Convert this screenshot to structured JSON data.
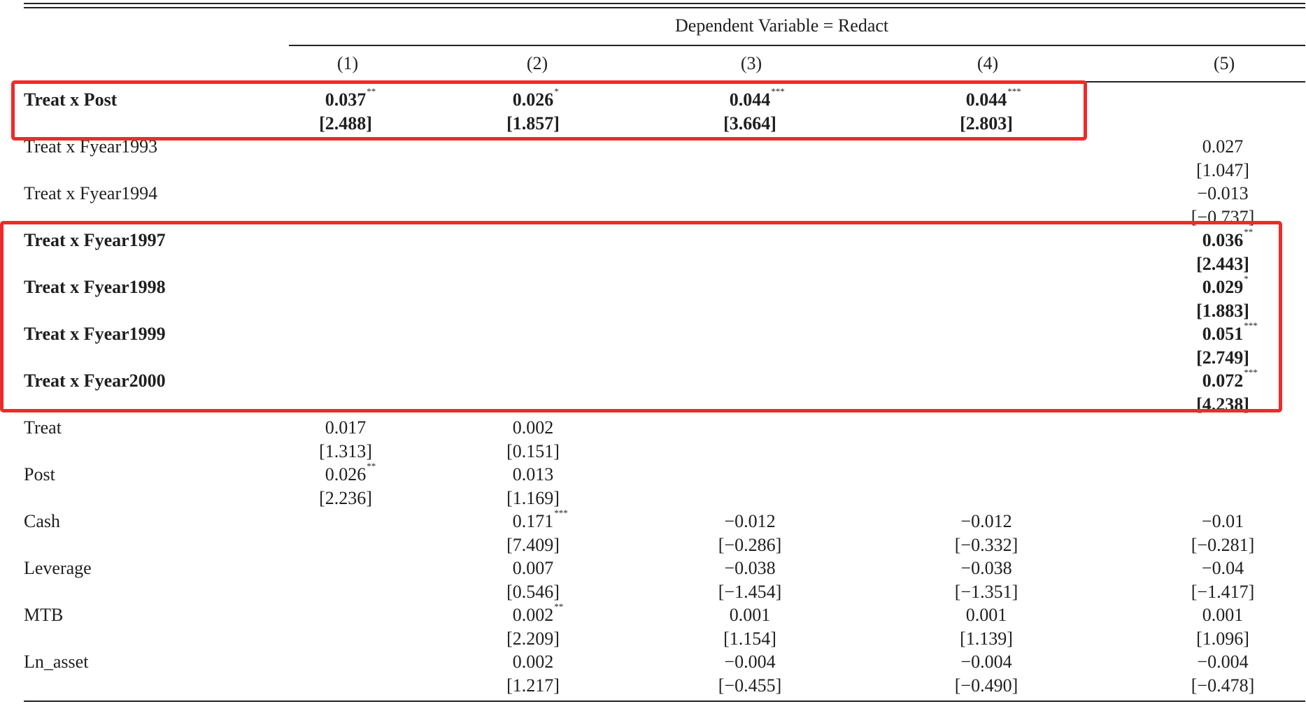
{
  "header": {
    "dependent_variable": "Dependent Variable = Redact",
    "columns": [
      "(1)",
      "(2)",
      "(3)",
      "(4)",
      "(5)"
    ]
  },
  "rows": [
    {
      "label": "Treat x Post",
      "bold": true,
      "cells": [
        {
          "col": 0,
          "coef": "0.037",
          "stars": "**",
          "t": "[2.488]"
        },
        {
          "col": 1,
          "coef": "0.026",
          "stars": "*",
          "t": "[1.857]"
        },
        {
          "col": 2,
          "coef": "0.044",
          "stars": "***",
          "t": "[3.664]"
        },
        {
          "col": 3,
          "coef": "0.044",
          "stars": "***",
          "t": "[2.803]"
        }
      ]
    },
    {
      "label": "Treat x Fyear1993",
      "bold": false,
      "cells": [
        {
          "col": 4,
          "coef": "0.027",
          "stars": "",
          "t": "[1.047]"
        }
      ]
    },
    {
      "label": "Treat x Fyear1994",
      "bold": false,
      "cells": [
        {
          "col": 4,
          "coef": "−0.013",
          "stars": "",
          "t": "[−0.737]"
        }
      ]
    },
    {
      "label": "Treat x Fyear1997",
      "bold": true,
      "cells": [
        {
          "col": 4,
          "coef": "0.036",
          "stars": "**",
          "t": "[2.443]"
        }
      ]
    },
    {
      "label": "Treat x Fyear1998",
      "bold": true,
      "cells": [
        {
          "col": 4,
          "coef": "0.029",
          "stars": "*",
          "t": "[1.883]"
        }
      ]
    },
    {
      "label": "Treat x Fyear1999",
      "bold": true,
      "cells": [
        {
          "col": 4,
          "coef": "0.051",
          "stars": "***",
          "t": "[2.749]"
        }
      ]
    },
    {
      "label": "Treat x Fyear2000",
      "bold": true,
      "cells": [
        {
          "col": 4,
          "coef": "0.072",
          "stars": "***",
          "t": "[4.238]"
        }
      ]
    },
    {
      "label": "Treat",
      "bold": false,
      "cells": [
        {
          "col": 0,
          "coef": "0.017",
          "stars": "",
          "t": "[1.313]"
        },
        {
          "col": 1,
          "coef": "0.002",
          "stars": "",
          "t": "[0.151]"
        }
      ]
    },
    {
      "label": "Post",
      "bold": false,
      "cells": [
        {
          "col": 0,
          "coef": "0.026",
          "stars": "**",
          "t": "[2.236]"
        },
        {
          "col": 1,
          "coef": "0.013",
          "stars": "",
          "t": "[1.169]"
        }
      ]
    },
    {
      "label": "Cash",
      "bold": false,
      "cells": [
        {
          "col": 1,
          "coef": "0.171",
          "stars": "***",
          "t": "[7.409]"
        },
        {
          "col": 2,
          "coef": "−0.012",
          "stars": "",
          "t": "[−0.286]"
        },
        {
          "col": 3,
          "coef": "−0.012",
          "stars": "",
          "t": "[−0.332]"
        },
        {
          "col": 4,
          "coef": "−0.01",
          "stars": "",
          "t": "[−0.281]"
        }
      ]
    },
    {
      "label": "Leverage",
      "bold": false,
      "cells": [
        {
          "col": 1,
          "coef": "0.007",
          "stars": "",
          "t": "[0.546]"
        },
        {
          "col": 2,
          "coef": "−0.038",
          "stars": "",
          "t": "[−1.454]"
        },
        {
          "col": 3,
          "coef": "−0.038",
          "stars": "",
          "t": "[−1.351]"
        },
        {
          "col": 4,
          "coef": "−0.04",
          "stars": "",
          "t": "[−1.417]"
        }
      ]
    },
    {
      "label": "MTB",
      "bold": false,
      "cells": [
        {
          "col": 1,
          "coef": "0.002",
          "stars": "**",
          "t": "[2.209]"
        },
        {
          "col": 2,
          "coef": "0.001",
          "stars": "",
          "t": "[1.154]"
        },
        {
          "col": 3,
          "coef": "0.001",
          "stars": "",
          "t": "[1.139]"
        },
        {
          "col": 4,
          "coef": "0.001",
          "stars": "",
          "t": "[1.096]"
        }
      ]
    },
    {
      "label": "Ln_asset",
      "bold": false,
      "cells": [
        {
          "col": 1,
          "coef": "0.002",
          "stars": "",
          "t": "[1.217]"
        },
        {
          "col": 2,
          "coef": "−0.004",
          "stars": "",
          "t": "[−0.455]"
        },
        {
          "col": 3,
          "coef": "−0.004",
          "stars": "",
          "t": "[−0.490]"
        },
        {
          "col": 4,
          "coef": "−0.004",
          "stars": "",
          "t": "[−0.478]"
        }
      ]
    }
  ],
  "highlight_color": "#ef2a2a"
}
